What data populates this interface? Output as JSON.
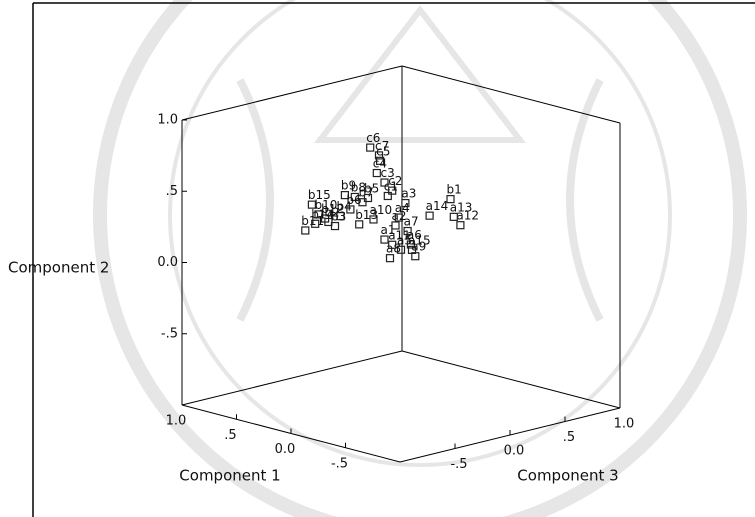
{
  "chart_data": {
    "type": "scatter3d",
    "x_label": "Component 1",
    "y_label": "Component 2",
    "z_label": "Component 3",
    "labels": [
      "c6",
      "c7",
      "c5",
      "c3",
      "c2",
      "c4",
      "c1",
      "b1",
      "a12",
      "a14",
      "a13",
      "b15",
      "b10",
      "b11",
      "b12",
      "b9",
      "b8",
      "b7",
      "b6",
      "b5",
      "b4",
      "b3",
      "b2",
      "a1",
      "a5",
      "a6",
      "a3",
      "a2",
      "a8",
      "a9",
      "a4",
      "a7",
      "a10",
      "a11",
      "a15",
      "b13",
      "b14"
    ],
    "x": [
      0,
      0,
      0,
      0,
      0,
      0,
      0,
      0,
      0,
      0,
      0,
      0,
      0,
      0,
      0,
      0,
      0,
      0,
      0,
      0,
      0,
      0,
      0,
      0,
      0,
      0,
      0,
      0,
      0,
      0,
      0,
      0,
      0,
      0,
      0,
      0,
      0
    ],
    "y": [
      0.87,
      0.8,
      0.76,
      0.6,
      0.53,
      0.68,
      0.5,
      0.37,
      0.17,
      0.29,
      0.24,
      0.57,
      0.49,
      0.4,
      0.45,
      0.58,
      0.55,
      0.5,
      0.47,
      0.52,
      0.44,
      0.38,
      0.42,
      0.2,
      0.1,
      0.12,
      0.42,
      0.28,
      0.06,
      0.03,
      0.33,
      0.22,
      0.36,
      0.15,
      0.08,
      0.35,
      0.43
    ],
    "z": [
      -0.28,
      -0.2,
      -0.19,
      -0.15,
      -0.08,
      -0.22,
      -0.12,
      0.45,
      0.54,
      0.26,
      0.48,
      -0.81,
      -0.75,
      -0.87,
      -0.69,
      -0.51,
      -0.42,
      -0.35,
      -0.46,
      -0.3,
      -0.55,
      -0.6,
      -0.66,
      -0.15,
      0,
      0.09,
      0.04,
      -0.05,
      -0.1,
      0.13,
      -0.02,
      0.06,
      -0.25,
      -0.08,
      0.1,
      -0.38,
      -0.78
    ],
    "xlim": [
      -1,
      1
    ],
    "ylim": [
      -1,
      1
    ],
    "zlim": [
      -1,
      1
    ],
    "xticks": [
      {
        "value": 1,
        "label": "1.0"
      },
      {
        "value": 0.5,
        "label": ".5"
      },
      {
        "value": 0,
        "label": "0.0"
      },
      {
        "value": -0.5,
        "label": "-.5"
      }
    ],
    "yticks": [
      {
        "value": 1,
        "label": "1.0"
      },
      {
        "value": 0.5,
        "label": ".5"
      },
      {
        "value": 0,
        "label": "0.0"
      },
      {
        "value": -0.5,
        "label": "-.5"
      }
    ],
    "zticks": [
      {
        "value": -0.5,
        "label": "-.5"
      },
      {
        "value": 0,
        "label": "0.0"
      },
      {
        "value": 0.5,
        "label": ".5"
      },
      {
        "value": 1,
        "label": "1.0"
      }
    ],
    "color": "#222222"
  }
}
